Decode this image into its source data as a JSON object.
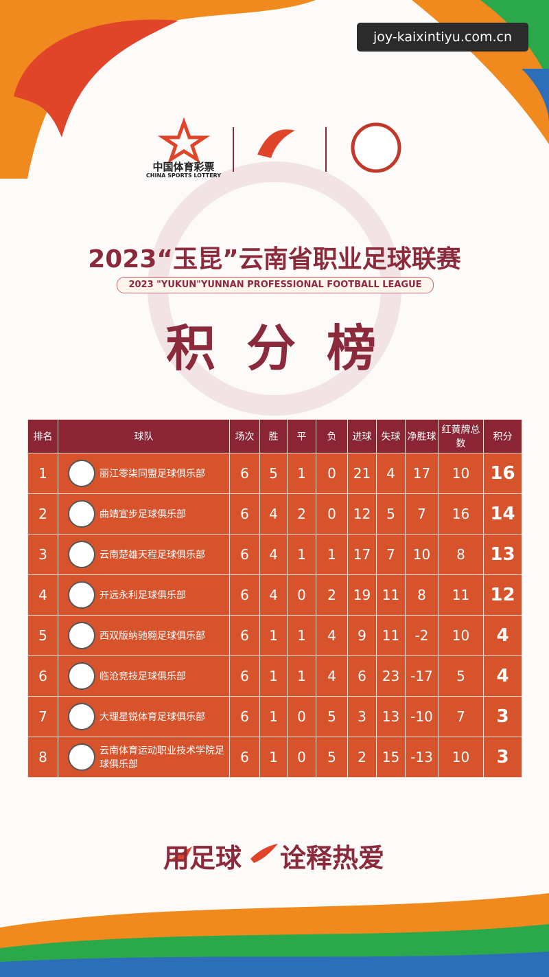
{
  "watermark": "joy-kaixintiyu.com.cn",
  "logos": {
    "lottery_cn": "中国体育彩票",
    "lottery_en": "CHINA SPORTS LOTTERY"
  },
  "header": {
    "title": "2023“玉昆”云南省职业足球联赛",
    "subtitle": "2023 \"YUKUN\"YUNNAN PROFESSIONAL FOOTBALL LEAGUE",
    "heading": "积 分 榜"
  },
  "table": {
    "columns": [
      "排名",
      "球队",
      "场次",
      "胜",
      "平",
      "负",
      "进球",
      "失球",
      "净胜球",
      "红黄牌总数",
      "积分"
    ],
    "rows": [
      [
        1,
        "丽江零柒同盟足球俱乐部",
        6,
        5,
        1,
        0,
        21,
        4,
        17,
        10,
        16
      ],
      [
        2,
        "曲靖宣步足球俱乐部",
        6,
        4,
        2,
        0,
        12,
        5,
        7,
        16,
        14
      ],
      [
        3,
        "云南楚雄天程足球俱乐部",
        6,
        4,
        1,
        1,
        17,
        7,
        10,
        8,
        13
      ],
      [
        4,
        "开远永利足球俱乐部",
        6,
        4,
        0,
        2,
        19,
        11,
        8,
        11,
        12
      ],
      [
        5,
        "西双版纳驰翱足球俱乐部",
        6,
        1,
        1,
        4,
        9,
        11,
        -2,
        10,
        4
      ],
      [
        6,
        "临沧竞技足球俱乐部",
        6,
        1,
        1,
        4,
        6,
        23,
        -17,
        5,
        4
      ],
      [
        7,
        "大理星锐体育足球俱乐部",
        6,
        1,
        0,
        5,
        3,
        13,
        -10,
        7,
        3
      ],
      [
        8,
        "云南体育运动职业技术学院足球俱乐部",
        6,
        1,
        0,
        5,
        2,
        15,
        -13,
        10,
        3
      ]
    ]
  },
  "slogan": {
    "left": "用足球",
    "right": "诠释热爱"
  }
}
